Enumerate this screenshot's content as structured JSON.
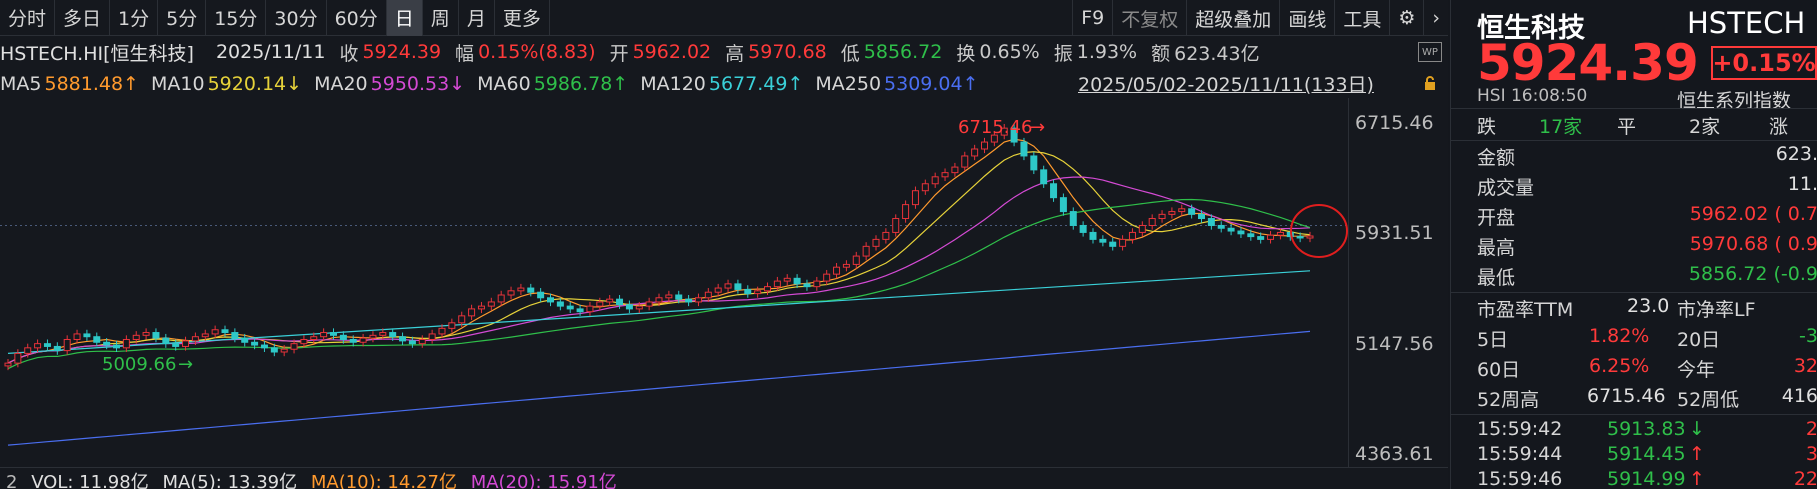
{
  "tabs": [
    "分时",
    "多日",
    "1分",
    "5分",
    "15分",
    "30分",
    "60分",
    "日",
    "周",
    "月",
    "更多"
  ],
  "active_tab": "日",
  "tools": [
    "F9",
    "不复权",
    "超级叠加",
    "画线",
    "工具"
  ],
  "info": {
    "code": "HSTECH.HI[恒生科技]",
    "date": "2025/11/11",
    "close_label": "收",
    "close": "5924.39",
    "amp_label": "幅",
    "amp": "0.15%(8.83)",
    "open_label": "开",
    "open": "5962.02",
    "high_label": "高",
    "high": "5970.68",
    "low_label": "低",
    "low": "5856.72",
    "turn_label": "换",
    "turn": "0.65%",
    "swing_label": "振",
    "swing": "1.93%",
    "amount_label": "额",
    "amount": "623.43亿"
  },
  "ma": [
    {
      "label": "MA5",
      "value": "5881.48↑",
      "color": "#ff9a2e"
    },
    {
      "label": "MA10",
      "value": "5920.14↓",
      "color": "#e6d23a"
    },
    {
      "label": "MA20",
      "value": "5950.53↓",
      "color": "#d44ad4"
    },
    {
      "label": "MA60",
      "value": "5986.78↑",
      "color": "#2fbf4a"
    },
    {
      "label": "MA120",
      "value": "5677.49↑",
      "color": "#3ad0d8"
    },
    {
      "label": "MA250",
      "value": "5309.04↑",
      "color": "#4a6ef0"
    }
  ],
  "range": "2025/05/02-2025/11/11(133日)",
  "wp": "WP",
  "axis": [
    "6715.46",
    "5931.51",
    "5147.56",
    "4363.61"
  ],
  "annot_high": "6715.46",
  "annot_low": "5009.66",
  "vol": {
    "prefix": "2",
    "vol": "VOL: 11.98亿",
    "ma5": "MA(5): 13.39亿",
    "ma10": "MA(10): 14.27亿",
    "ma20": "MA(20): 15.91亿"
  },
  "right": {
    "name": "恒生科技",
    "code": "HSTECH",
    "price": "5924.39",
    "pct": "+0.15%",
    "hsi": "HSI  16:08:50",
    "series": "恒生系列指数",
    "breadth": {
      "down": "跌",
      "down_n": "17家",
      "flat": "平",
      "flat_n": "2家",
      "up": "涨"
    },
    "amount": {
      "k": "金额",
      "v": "623."
    },
    "volume": {
      "k": "成交量",
      "v": "11."
    },
    "open": {
      "k": "开盘",
      "v": "5962.02 ( 0.7"
    },
    "high": {
      "k": "最高",
      "v": "5970.68 ( 0.9"
    },
    "low": {
      "k": "最低",
      "v": "5856.72 (-0.9"
    },
    "pe": {
      "k": "市盈率TTM",
      "v": "23.0",
      "k2": "市净率LF"
    },
    "d5": {
      "k": "5日",
      "v": "1.82%",
      "k2": "20日",
      "v2": "-3"
    },
    "d60": {
      "k": "60日",
      "v": "6.25%",
      "k2": "今年",
      "v2": "32"
    },
    "w52": {
      "k": "52周高",
      "v": "6715.46",
      "k2": "52周低",
      "v2": "416"
    },
    "ticks": [
      {
        "t": "15:59:42",
        "p": "5913.83",
        "dir": "↓",
        "n": "2"
      },
      {
        "t": "15:59:44",
        "p": "5914.45",
        "dir": "↑",
        "n": "3"
      },
      {
        "t": "15:59:46",
        "p": "5914.99",
        "dir": "↑",
        "n": "22"
      }
    ]
  },
  "chart_data": {
    "type": "candlestick",
    "title": "HSTECH.HI 恒生科技 日K",
    "ylim": [
      4363.61,
      6715.46
    ],
    "y_ticks": [
      6715.46,
      5931.51,
      5147.56,
      4363.61
    ],
    "period": "2025/05/02-2025/11/11",
    "annotations": [
      {
        "text": "6715.46",
        "type": "high"
      },
      {
        "text": "5009.66",
        "type": "low"
      }
    ],
    "close": [
      5010,
      5080,
      5120,
      5150,
      5130,
      5100,
      5180,
      5220,
      5200,
      5160,
      5140,
      5120,
      5180,
      5210,
      5230,
      5190,
      5150,
      5130,
      5170,
      5200,
      5220,
      5250,
      5230,
      5190,
      5160,
      5140,
      5120,
      5090,
      5110,
      5150,
      5180,
      5200,
      5230,
      5210,
      5180,
      5160,
      5190,
      5210,
      5230,
      5200,
      5170,
      5150,
      5180,
      5220,
      5260,
      5300,
      5350,
      5400,
      5420,
      5450,
      5500,
      5530,
      5550,
      5520,
      5480,
      5450,
      5420,
      5400,
      5380,
      5420,
      5450,
      5470,
      5430,
      5400,
      5420,
      5450,
      5480,
      5500,
      5470,
      5450,
      5480,
      5520,
      5550,
      5580,
      5540,
      5510,
      5530,
      5560,
      5600,
      5620,
      5580,
      5560,
      5600,
      5650,
      5700,
      5720,
      5780,
      5850,
      5900,
      5950,
      6050,
      6150,
      6250,
      6300,
      6350,
      6380,
      6420,
      6500,
      6550,
      6600,
      6650,
      6700,
      6600,
      6500,
      6400,
      6300,
      6200,
      6100,
      6000,
      5950,
      5900,
      5880,
      5850,
      5900,
      5950,
      6000,
      6050,
      6080,
      6100,
      6120,
      6080,
      6050,
      6000,
      5980,
      5960,
      5940,
      5920,
      5900,
      5930,
      5950,
      5920,
      5910,
      5924.39
    ]
  }
}
